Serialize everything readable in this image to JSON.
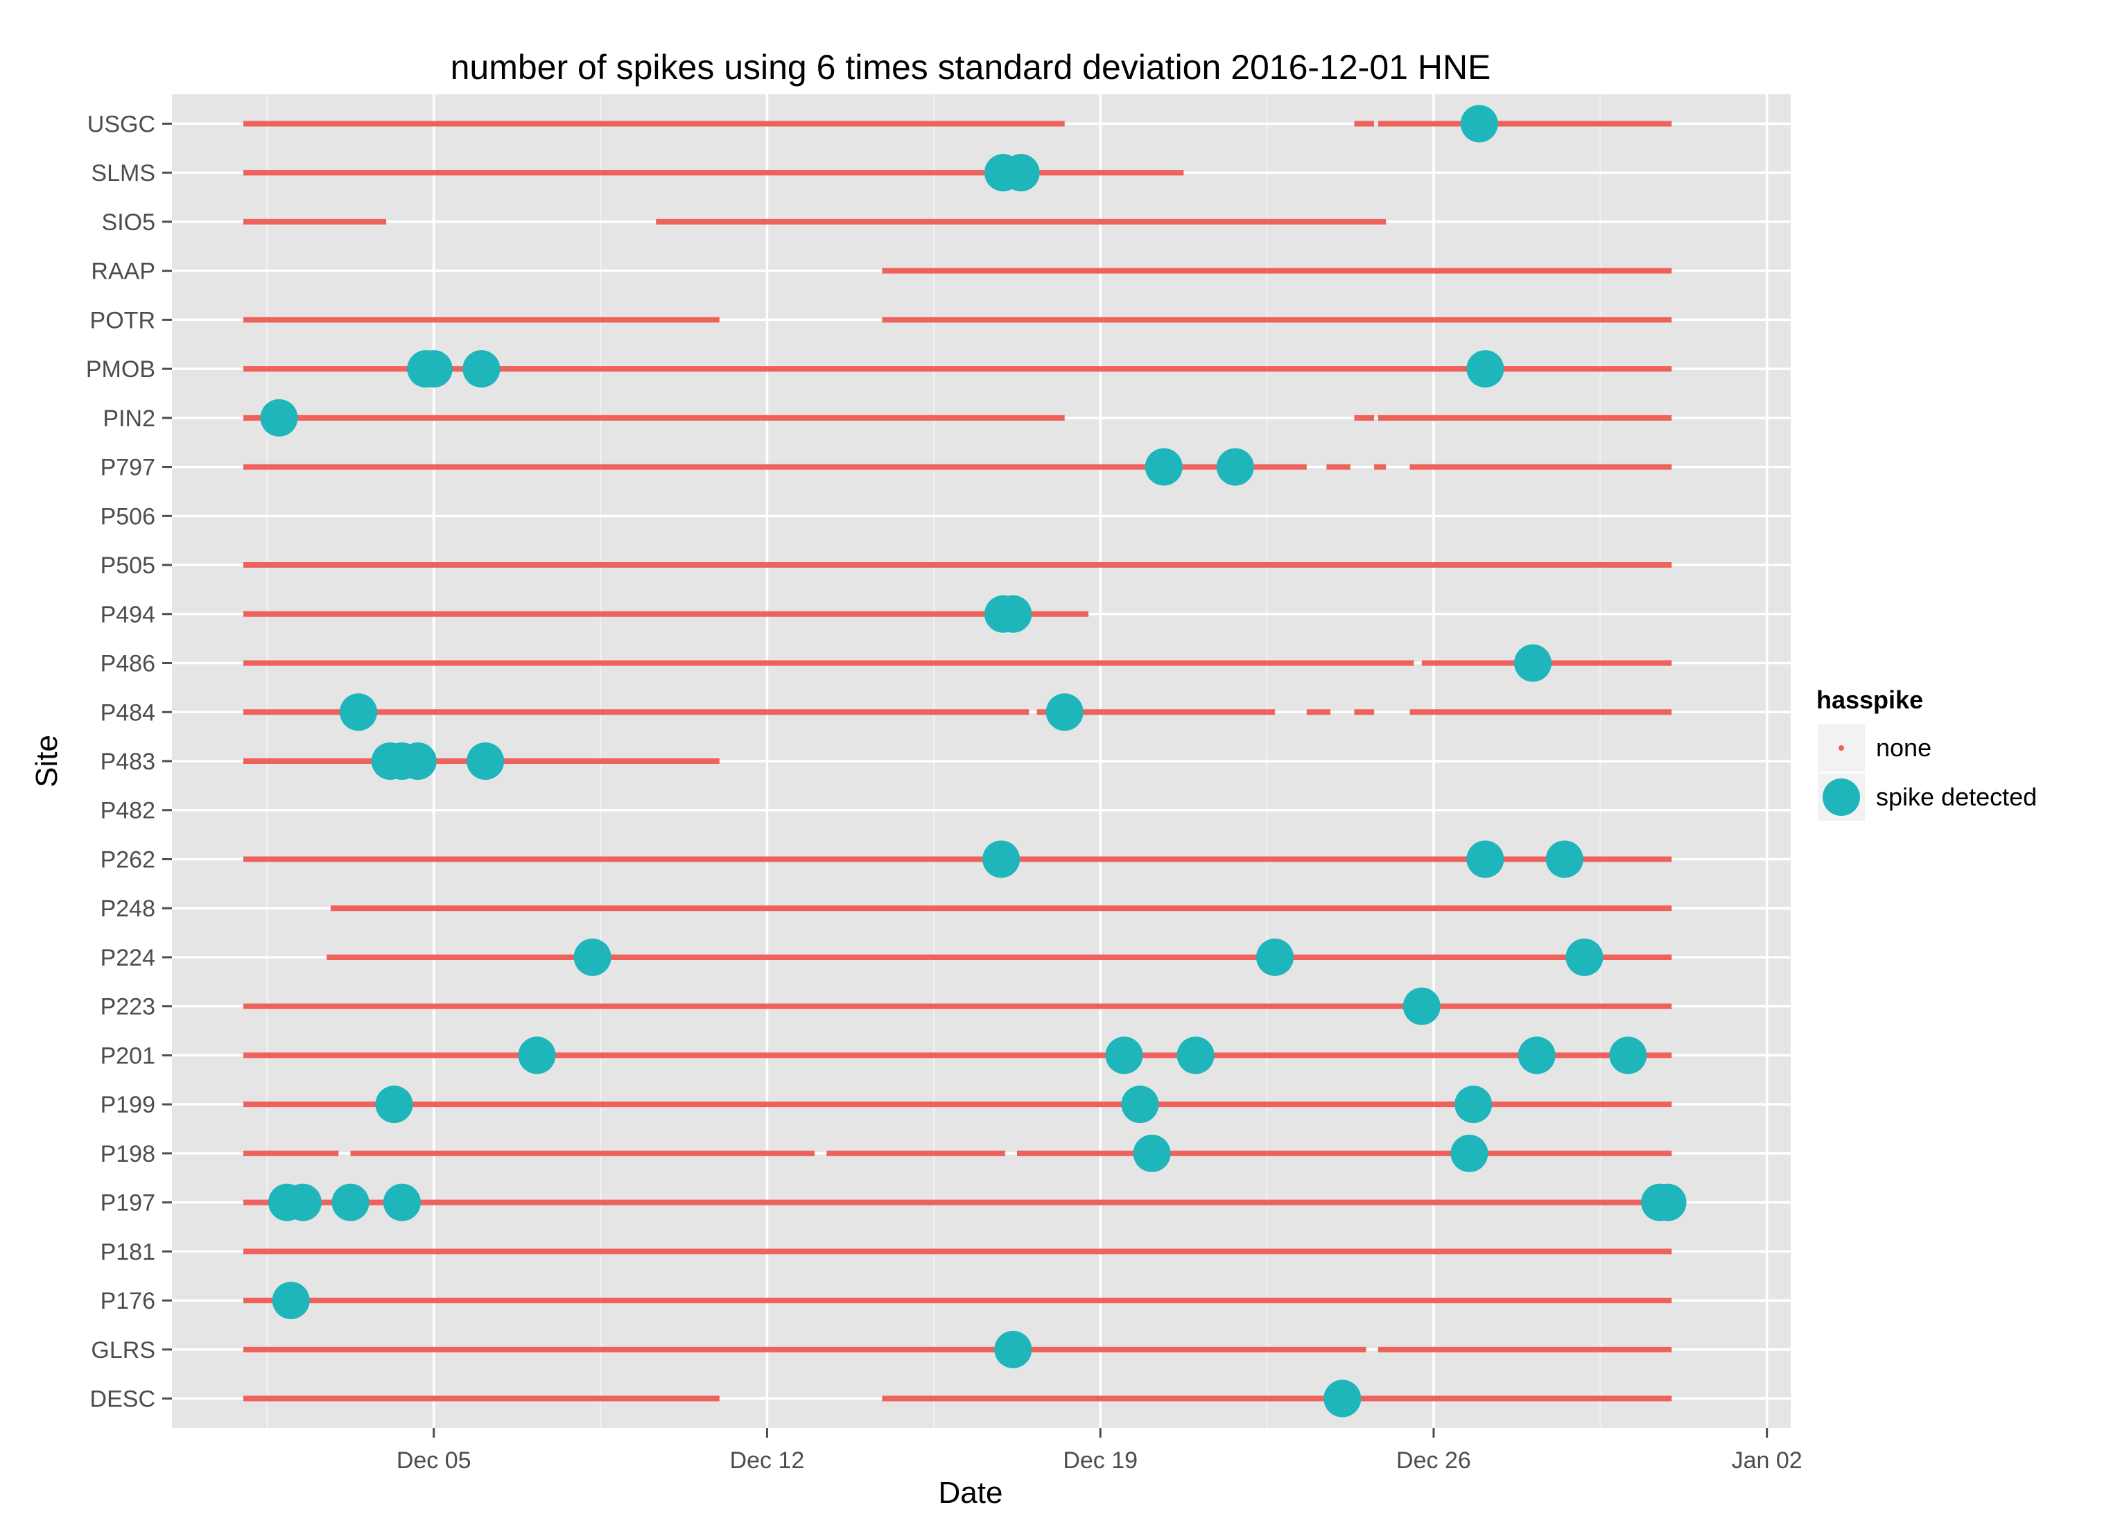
{
  "chart_data": {
    "type": "scatter",
    "title": "number of spikes using  6 times standard deviation 2016-12-01 HNE",
    "xlabel": "Date",
    "ylabel": "Site",
    "xlim": [
      "2016-11-29T12:00",
      "2017-01-02T12:00"
    ],
    "x_ticks": [
      {
        "value": "2016-12-05",
        "label": "Dec 05"
      },
      {
        "value": "2016-12-12",
        "label": "Dec 12"
      },
      {
        "value": "2016-12-19",
        "label": "Dec 19"
      },
      {
        "value": "2016-12-26",
        "label": "Dec 26"
      },
      {
        "value": "2017-01-02",
        "label": "Jan 02"
      }
    ],
    "grid": true,
    "background": "#e5e5e5",
    "legend": {
      "title": "hasspike",
      "placement": "right",
      "entries": [
        {
          "label": "none",
          "color": "#ef625b",
          "shape": "small-dot"
        },
        {
          "label": "spike detected",
          "color": "#1eb5bb",
          "shape": "large-dot"
        }
      ]
    },
    "sites": [
      "DESC",
      "GLRS",
      "P176",
      "P181",
      "P197",
      "P198",
      "P199",
      "P201",
      "P223",
      "P224",
      "P248",
      "P262",
      "P482",
      "P483",
      "P484",
      "P486",
      "P494",
      "P505",
      "P506",
      "P797",
      "PIN2",
      "PMOB",
      "POTR",
      "RAAP",
      "SIO5",
      "SLMS",
      "USGC"
    ],
    "series": [
      {
        "name": "none",
        "color": "#ef625b",
        "coverage": [
          {
            "site": "USGC",
            "segments": [
              [
                "2016-12-01",
                "2016-12-18T06:00"
              ],
              [
                "2016-12-24T08:00",
                "2016-12-24T18:00"
              ],
              [
                "2016-12-24T20:00",
                "2016-12-31T00:00"
              ]
            ]
          },
          {
            "site": "SLMS",
            "segments": [
              [
                "2016-12-01",
                "2016-12-20T18:00"
              ]
            ]
          },
          {
            "site": "SIO5",
            "segments": [
              [
                "2016-12-01",
                "2016-12-04T00:00"
              ],
              [
                "2016-12-09T16:00",
                "2016-12-25T00:00"
              ]
            ]
          },
          {
            "site": "RAAP",
            "segments": [
              [
                "2016-12-14T10:00",
                "2016-12-31T00:00"
              ]
            ]
          },
          {
            "site": "POTR",
            "segments": [
              [
                "2016-12-01",
                "2016-12-11T00:00"
              ],
              [
                "2016-12-14T10:00",
                "2016-12-31T00:00"
              ]
            ]
          },
          {
            "site": "PMOB",
            "segments": [
              [
                "2016-12-01",
                "2016-12-31T00:00"
              ]
            ]
          },
          {
            "site": "PIN2",
            "segments": [
              [
                "2016-12-01",
                "2016-12-18T06:00"
              ],
              [
                "2016-12-24T08:00",
                "2016-12-24T18:00"
              ],
              [
                "2016-12-24T20:00",
                "2016-12-31T00:00"
              ]
            ]
          },
          {
            "site": "P797",
            "segments": [
              [
                "2016-12-01",
                "2016-12-23T08:00"
              ],
              [
                "2016-12-23T18:00",
                "2016-12-24T06:00"
              ],
              [
                "2016-12-24T18:00",
                "2016-12-25T00:00"
              ],
              [
                "2016-12-25T12:00",
                "2016-12-31T00:00"
              ]
            ]
          },
          {
            "site": "P506",
            "segments": []
          },
          {
            "site": "P505",
            "segments": [
              [
                "2016-12-01",
                "2016-12-31T00:00"
              ]
            ]
          },
          {
            "site": "P494",
            "segments": [
              [
                "2016-12-01",
                "2016-12-18T18:00"
              ]
            ]
          },
          {
            "site": "P486",
            "segments": [
              [
                "2016-12-01",
                "2016-12-25T14:00"
              ],
              [
                "2016-12-25T18:00",
                "2016-12-31T00:00"
              ]
            ]
          },
          {
            "site": "P484",
            "segments": [
              [
                "2016-12-01",
                "2016-12-17T12:00"
              ],
              [
                "2016-12-17T16:00",
                "2016-12-22T16:00"
              ],
              [
                "2016-12-23T08:00",
                "2016-12-23T20:00"
              ],
              [
                "2016-12-24T08:00",
                "2016-12-24T18:00"
              ],
              [
                "2016-12-25T12:00",
                "2016-12-31T00:00"
              ]
            ]
          },
          {
            "site": "P483",
            "segments": [
              [
                "2016-12-01",
                "2016-12-11T00:00"
              ]
            ]
          },
          {
            "site": "P482",
            "segments": []
          },
          {
            "site": "P262",
            "segments": [
              [
                "2016-12-01",
                "2016-12-31T00:00"
              ]
            ]
          },
          {
            "site": "P248",
            "segments": [
              [
                "2016-12-02T20:00",
                "2016-12-31T00:00"
              ]
            ]
          },
          {
            "site": "P224",
            "segments": [
              [
                "2016-12-02T18:00",
                "2016-12-31T00:00"
              ]
            ]
          },
          {
            "site": "P223",
            "segments": [
              [
                "2016-12-01",
                "2016-12-31T00:00"
              ]
            ]
          },
          {
            "site": "P201",
            "segments": [
              [
                "2016-12-01",
                "2016-12-31T00:00"
              ]
            ]
          },
          {
            "site": "P199",
            "segments": [
              [
                "2016-12-01",
                "2016-12-31T00:00"
              ]
            ]
          },
          {
            "site": "P198",
            "segments": [
              [
                "2016-12-01",
                "2016-12-03T00:00"
              ],
              [
                "2016-12-03T06:00",
                "2016-12-13T00:00"
              ],
              [
                "2016-12-13T06:00",
                "2016-12-17T00:00"
              ],
              [
                "2016-12-17T06:00",
                "2016-12-31T00:00"
              ]
            ]
          },
          {
            "site": "P197",
            "segments": [
              [
                "2016-12-01",
                "2016-12-31T00:00"
              ]
            ]
          },
          {
            "site": "P181",
            "segments": [
              [
                "2016-12-01",
                "2016-12-31T00:00"
              ]
            ]
          },
          {
            "site": "P176",
            "segments": [
              [
                "2016-12-01",
                "2016-12-31T00:00"
              ]
            ]
          },
          {
            "site": "GLRS",
            "segments": [
              [
                "2016-12-01",
                "2016-12-24T14:00"
              ],
              [
                "2016-12-24T20:00",
                "2016-12-31T00:00"
              ]
            ]
          },
          {
            "site": "DESC",
            "segments": [
              [
                "2016-12-01",
                "2016-12-11T00:00"
              ],
              [
                "2016-12-14T10:00",
                "2016-12-31T00:00"
              ]
            ]
          }
        ]
      },
      {
        "name": "spike detected",
        "color": "#1eb5bb",
        "points": [
          {
            "site": "USGC",
            "x": "2016-12-26T23:00"
          },
          {
            "site": "SLMS",
            "x": "2016-12-16T23:00"
          },
          {
            "site": "SLMS",
            "x": "2016-12-17T08:00"
          },
          {
            "site": "PMOB",
            "x": "2016-12-04T20:00"
          },
          {
            "site": "PMOB",
            "x": "2016-12-05T00:00"
          },
          {
            "site": "PMOB",
            "x": "2016-12-06T00:00"
          },
          {
            "site": "PMOB",
            "x": "2016-12-27T02:00"
          },
          {
            "site": "PIN2",
            "x": "2016-12-01T18:00"
          },
          {
            "site": "P797",
            "x": "2016-12-20T08:00"
          },
          {
            "site": "P797",
            "x": "2016-12-21T20:00"
          },
          {
            "site": "P494",
            "x": "2016-12-16T23:00"
          },
          {
            "site": "P494",
            "x": "2016-12-17T04:00"
          },
          {
            "site": "P486",
            "x": "2016-12-28T02:00"
          },
          {
            "site": "P484",
            "x": "2016-12-03T10:00"
          },
          {
            "site": "P484",
            "x": "2016-12-18T06:00"
          },
          {
            "site": "P483",
            "x": "2016-12-04T02:00"
          },
          {
            "site": "P483",
            "x": "2016-12-04T08:00"
          },
          {
            "site": "P483",
            "x": "2016-12-04T16:00"
          },
          {
            "site": "P483",
            "x": "2016-12-06T02:00"
          },
          {
            "site": "P262",
            "x": "2016-12-16T22:00"
          },
          {
            "site": "P262",
            "x": "2016-12-27T02:00"
          },
          {
            "site": "P262",
            "x": "2016-12-28T18:00"
          },
          {
            "site": "P224",
            "x": "2016-12-08T08:00"
          },
          {
            "site": "P224",
            "x": "2016-12-22T16:00"
          },
          {
            "site": "P224",
            "x": "2016-12-29T04:00"
          },
          {
            "site": "P223",
            "x": "2016-12-25T18:00"
          },
          {
            "site": "P201",
            "x": "2016-12-07T04:00"
          },
          {
            "site": "P201",
            "x": "2016-12-19T12:00"
          },
          {
            "site": "P201",
            "x": "2016-12-21T00:00"
          },
          {
            "site": "P201",
            "x": "2016-12-28T04:00"
          },
          {
            "site": "P201",
            "x": "2016-12-30T02:00"
          },
          {
            "site": "P199",
            "x": "2016-12-04T04:00"
          },
          {
            "site": "P199",
            "x": "2016-12-19T20:00"
          },
          {
            "site": "P199",
            "x": "2016-12-26T20:00"
          },
          {
            "site": "P198",
            "x": "2016-12-20T02:00"
          },
          {
            "site": "P198",
            "x": "2016-12-26T18:00"
          },
          {
            "site": "P197",
            "x": "2016-12-01T22:00"
          },
          {
            "site": "P197",
            "x": "2016-12-02T06:00"
          },
          {
            "site": "P197",
            "x": "2016-12-03T06:00"
          },
          {
            "site": "P197",
            "x": "2016-12-04T08:00"
          },
          {
            "site": "P197",
            "x": "2016-12-30T18:00"
          },
          {
            "site": "P197",
            "x": "2016-12-30T22:00"
          },
          {
            "site": "P176",
            "x": "2016-12-02T00:00"
          },
          {
            "site": "GLRS",
            "x": "2016-12-17T04:00"
          },
          {
            "site": "DESC",
            "x": "2016-12-24T02:00"
          }
        ]
      }
    ]
  }
}
